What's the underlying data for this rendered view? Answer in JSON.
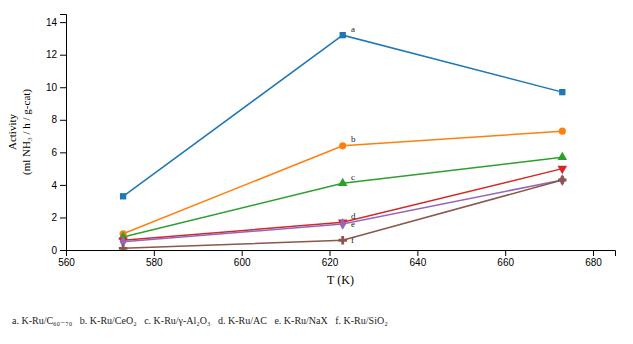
{
  "chart_data": {
    "type": "line",
    "x": [
      573,
      623,
      673
    ],
    "series": [
      {
        "values": [
          3.3,
          13.2,
          9.7
        ],
        "marker": "square"
      },
      {
        "values": [
          1.0,
          6.4,
          7.3
        ],
        "marker": "circle"
      },
      {
        "values": [
          0.8,
          4.1,
          5.7
        ],
        "marker": "triangle-up"
      },
      {
        "values": [
          0.6,
          1.7,
          5.0
        ],
        "marker": "triangle-down"
      },
      {
        "values": [
          0.5,
          1.6,
          4.3
        ],
        "marker": "diamond"
      },
      {
        "values": [
          0.1,
          0.6,
          4.3
        ],
        "marker": "plus"
      }
    ],
    "annotations": [
      {
        "text": "a",
        "x": 624,
        "y": 13.4
      },
      {
        "text": "b",
        "x": 624,
        "y": 6.65
      },
      {
        "text": "c",
        "x": 624,
        "y": 4.3
      },
      {
        "text": "d",
        "x": 624,
        "y": 1.9
      },
      {
        "text": "e",
        "x": 624,
        "y": 1.4
      },
      {
        "text": "f",
        "x": 624,
        "y": 0.4
      }
    ],
    "xlabel": "T (K)",
    "ylabel": [
      "Activity",
      "(ml NH₃ / h / g-cat)"
    ],
    "caption": "a. K-Ru/C₆₀₋₇₀   b. K-Ru/CeO₂   c. K-Ru/γ-Al₂O₃   d. K-Ru/AC   e. K-Ru/NaX   f. K-Ru/SiO₂",
    "xlim": [
      560,
      685
    ],
    "ylim": [
      0,
      14.5
    ],
    "xticks": [
      560,
      580,
      600,
      620,
      640,
      660,
      680
    ],
    "yticks": [
      0,
      2,
      4,
      6,
      8,
      10,
      12,
      14
    ],
    "grid": false
  }
}
